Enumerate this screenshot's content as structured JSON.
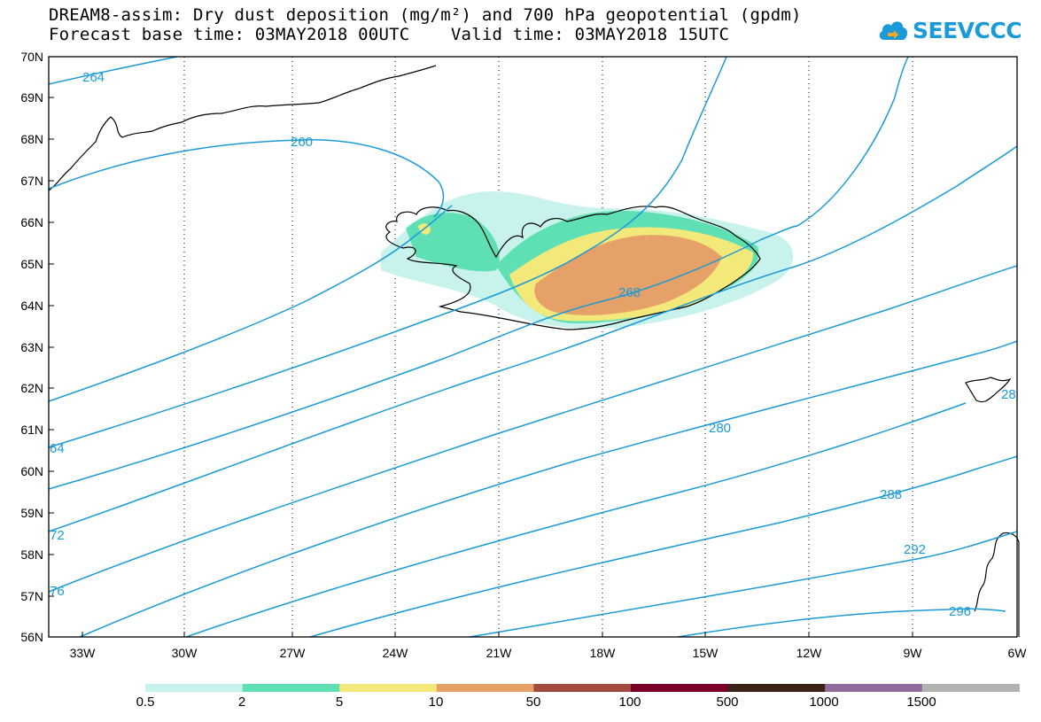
{
  "title": {
    "line1": "DREAM8-assim: Dry dust deposition (mg/m²) and 700 hPa geopotential (gpdm)",
    "line2": "Forecast base time: 03MAY2018 00UTC    Valid time: 03MAY2018 15UTC"
  },
  "logo": {
    "text": "SEEVCCC",
    "icon": "cloud-logo-icon"
  },
  "axes": {
    "lat_labels": [
      "70N",
      "69N",
      "68N",
      "67N",
      "66N",
      "65N",
      "64N",
      "63N",
      "62N",
      "61N",
      "60N",
      "59N",
      "58N",
      "57N",
      "56N"
    ],
    "lon_labels": [
      "33W",
      "30W",
      "27W",
      "24W",
      "21W",
      "18W",
      "15W",
      "12W",
      "9W",
      "6W"
    ],
    "lon_range": [
      -34,
      -6
    ],
    "lat_range": [
      56,
      70
    ],
    "grid": "dotted"
  },
  "contours": {
    "variable": "700 hPa geopotential (gpdm)",
    "color": "#1a9bd7",
    "labels": [
      "264",
      "260",
      "268",
      "64",
      "280",
      "72",
      "288",
      "76",
      "292",
      "296",
      "28"
    ]
  },
  "legend": {
    "labels": [
      "0.5",
      "2",
      "5",
      "10",
      "50",
      "100",
      "500",
      "1000",
      "1500"
    ],
    "colors": [
      "#c8f2ec",
      "#5ee0b4",
      "#f3e97a",
      "#e6a169",
      "#a4493f",
      "#790026",
      "#3b2217",
      "#8f6c9c",
      "#b2b2b2"
    ]
  },
  "colors": {
    "frame": "#000000",
    "contour": "#1a9bd7",
    "brand": "#1a9bd7"
  }
}
